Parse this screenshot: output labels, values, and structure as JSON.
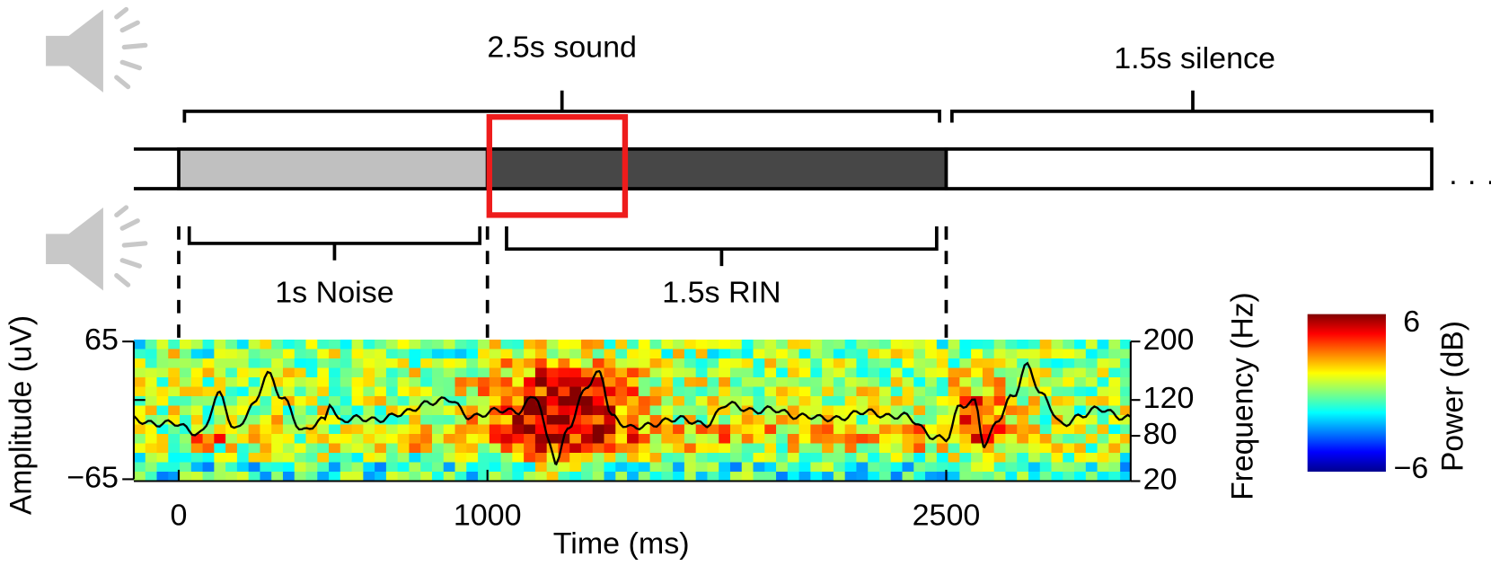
{
  "timeline": {
    "sound_label": "2.5s sound",
    "silence_label": "1.5s silence",
    "noise_label": "1s Noise",
    "rin_label": "1.5s RIN",
    "ellipsis": "· · ·"
  },
  "plot": {
    "y_label": "Amplitude (uV)",
    "y_ticks": [
      "65",
      "−65"
    ],
    "x_label": "Time (ms)",
    "x_ticks": [
      "0",
      "1000",
      "2500"
    ],
    "y2_label": "Frequency (Hz)",
    "y2_ticks": [
      "200",
      "120",
      "80",
      "20"
    ]
  },
  "colorbar": {
    "label": "Power (dB)",
    "max": "6",
    "min": "−6"
  }
}
